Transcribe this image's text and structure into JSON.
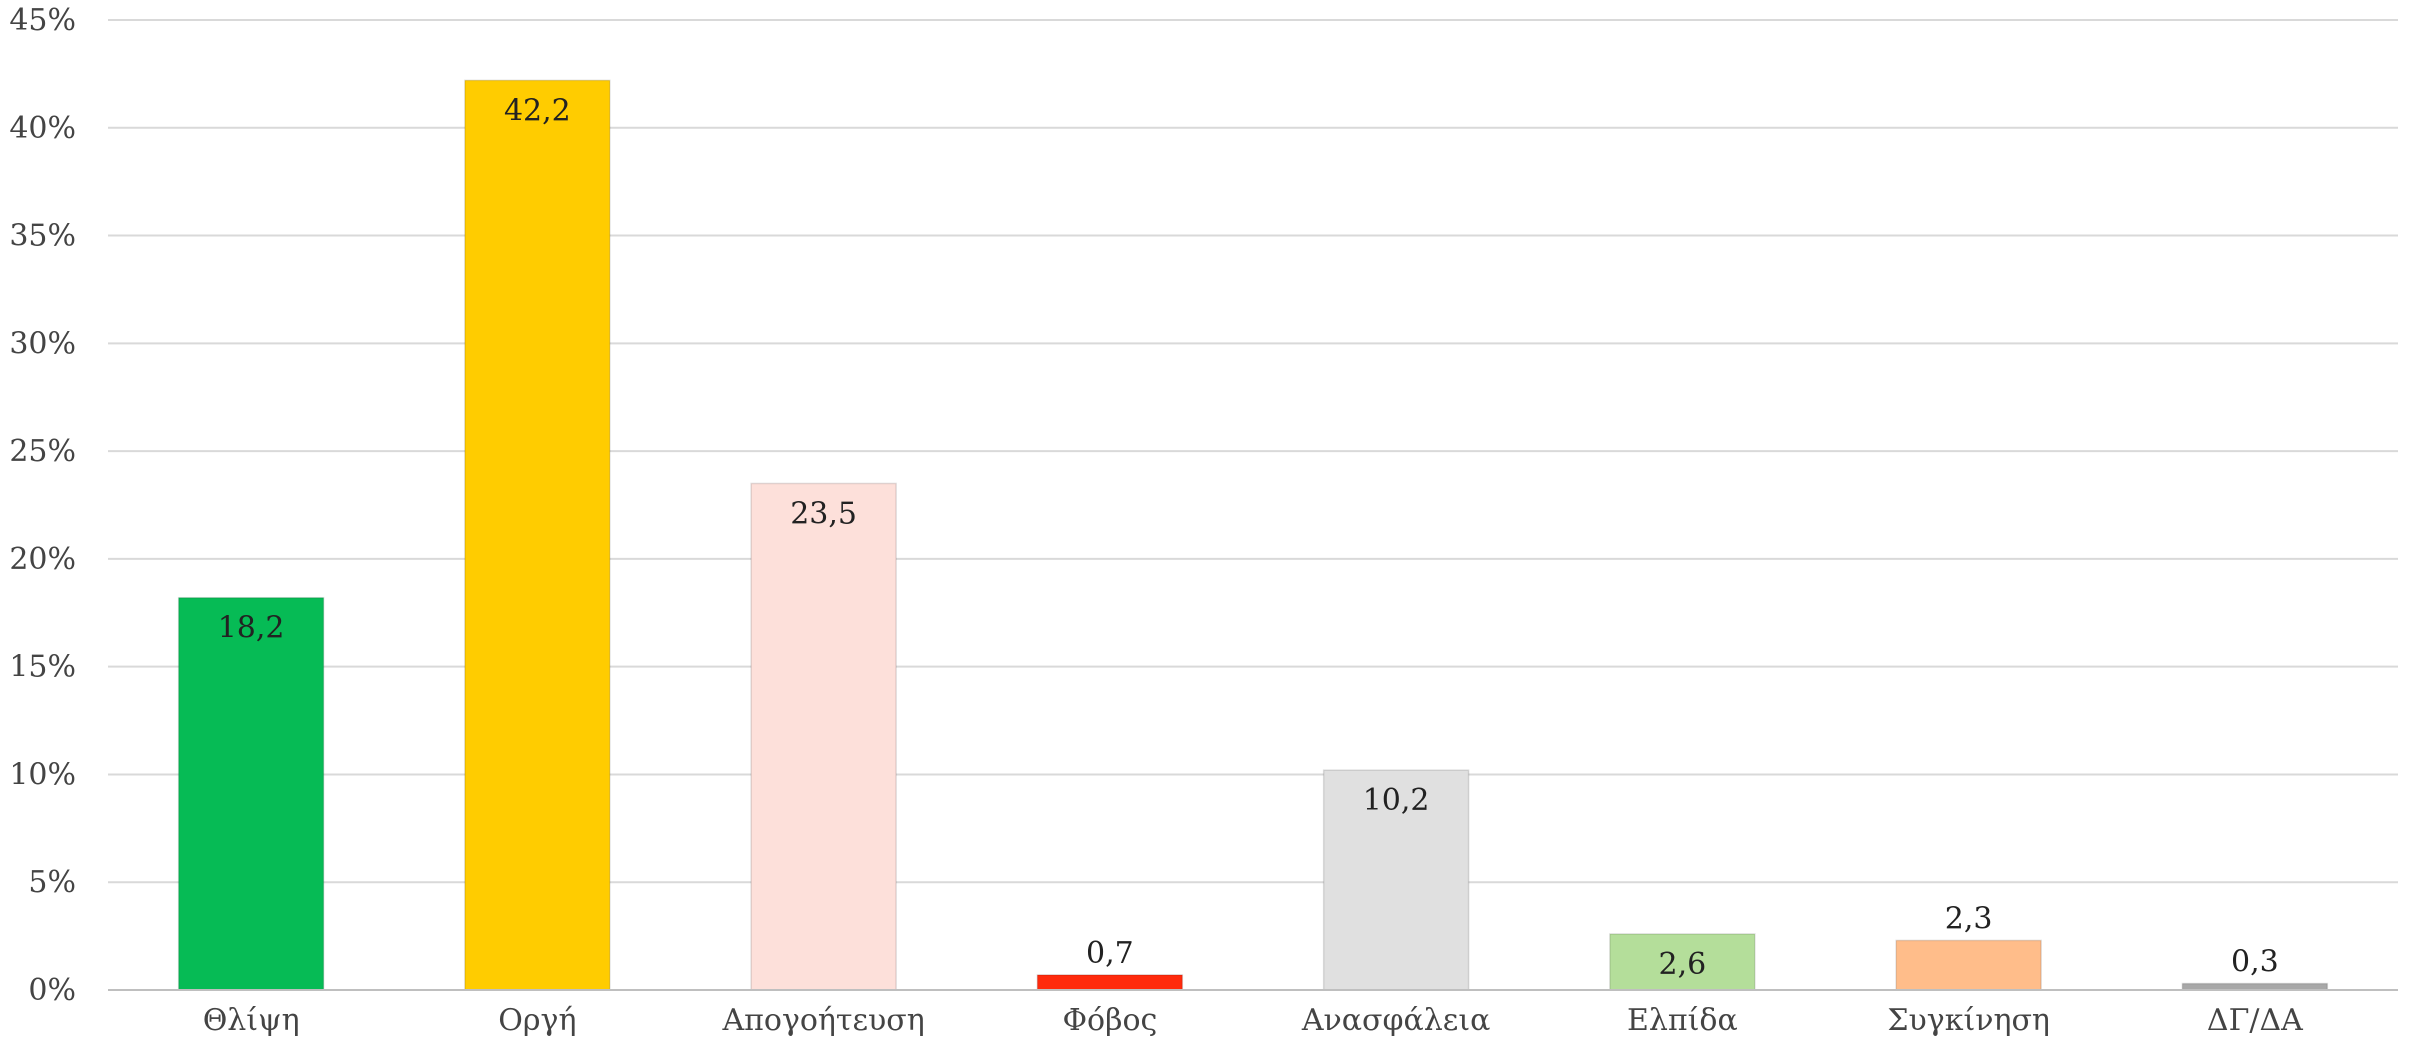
{
  "chart_data": {
    "type": "bar",
    "title": "",
    "xlabel": "",
    "ylabel": "",
    "categories": [
      "Θλίψη",
      "Οργή",
      "Απογοήτευση",
      "Φόβος",
      "Ανασφάλεια",
      "Ελπίδα",
      "Συγκίνηση",
      "ΔΓ/ΔΑ"
    ],
    "values": [
      18.2,
      42.2,
      23.5,
      0.7,
      10.2,
      2.6,
      2.3,
      0.3
    ],
    "data_labels": [
      "18,2",
      "42,2",
      "23,5",
      "0,7",
      "10,2",
      "2,6",
      "2,3",
      "0,3"
    ],
    "bar_colors": [
      "#06bb55",
      "#ffcc00",
      "#fde0da",
      "#ff2a0c",
      "#e0e0e0",
      "#b4de9a",
      "#ffbd8a",
      "#a8a8a8"
    ],
    "ylim": [
      0,
      45
    ],
    "yticks": [
      0,
      5,
      10,
      15,
      20,
      25,
      30,
      35,
      40,
      45
    ],
    "ytick_labels": [
      "0%",
      "5%",
      "10%",
      "15%",
      "20%",
      "25%",
      "30%",
      "35%",
      "40%",
      "45%"
    ],
    "grid": true,
    "legend": "none"
  }
}
